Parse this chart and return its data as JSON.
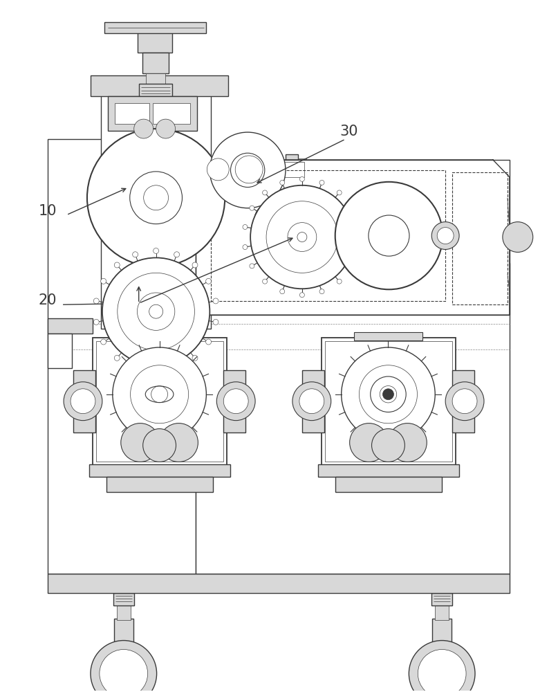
{
  "bg_color": "#ffffff",
  "lc": "#3a3a3a",
  "lg": "#d8d8d8",
  "mg": "#b0b0b0",
  "dg": "#888888",
  "lw_main": 1.0,
  "lw_thin": 0.5,
  "lw_thick": 1.5
}
